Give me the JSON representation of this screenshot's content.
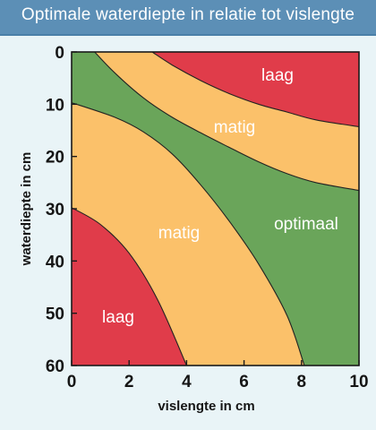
{
  "header": {
    "title": "Optimale waterdiepte in relatie tot vislengte"
  },
  "chart_data": {
    "type": "area",
    "title": "Optimale waterdiepte in relatie tot vislengte",
    "xlabel": "vislengte in cm",
    "ylabel": "waterdiepte in cm",
    "xlim": [
      0,
      10
    ],
    "ylim": [
      0,
      60
    ],
    "y_inverted": true,
    "x_ticks": [
      0,
      2,
      4,
      6,
      8,
      10
    ],
    "y_ticks": [
      0,
      10,
      20,
      30,
      40,
      50,
      60
    ],
    "grid": false,
    "colors": {
      "laag": "#e03c4a",
      "matig": "#fbc16a",
      "optimaal": "#6aa55a",
      "boundary": "#222222"
    },
    "zones": [
      {
        "name": "laag",
        "label": "laag",
        "position": "top-right"
      },
      {
        "name": "matig",
        "label": "matig",
        "position": "upper band"
      },
      {
        "name": "optimaal",
        "label": "optimaal",
        "position": "diagonal band"
      },
      {
        "name": "matig",
        "label": "matig",
        "position": "lower band"
      },
      {
        "name": "laag",
        "label": "laag",
        "position": "bottom-left"
      }
    ],
    "boundaries": [
      {
        "name": "upper-laag-limit",
        "x": [
          2.8,
          3.5,
          4.5,
          5.5,
          6.5,
          7.5,
          8.5,
          10
        ],
        "y": [
          0,
          2.5,
          5.5,
          8.0,
          10.0,
          11.5,
          13.0,
          14.3
        ]
      },
      {
        "name": "upper-matig-limit",
        "x": [
          0.8,
          1.5,
          2.5,
          3.5,
          4.5,
          5.5,
          6.5,
          7.5,
          8.5,
          10
        ],
        "y": [
          0,
          4.0,
          8.8,
          12.5,
          15.5,
          18.3,
          21.0,
          23.3,
          25.0,
          26.5
        ]
      },
      {
        "name": "lower-matig-limit",
        "x": [
          0,
          1.5,
          2.5,
          3.5,
          4.5,
          5.5,
          6.5,
          7.5,
          8.1
        ],
        "y": [
          9.7,
          12.5,
          15.3,
          19.5,
          25.5,
          32.5,
          40.5,
          50.5,
          60
        ]
      },
      {
        "name": "lower-laag-limit",
        "x": [
          0,
          1.0,
          2.0,
          3.0,
          4.0
        ],
        "y": [
          29.8,
          33.0,
          38.5,
          47.5,
          60
        ]
      }
    ]
  }
}
